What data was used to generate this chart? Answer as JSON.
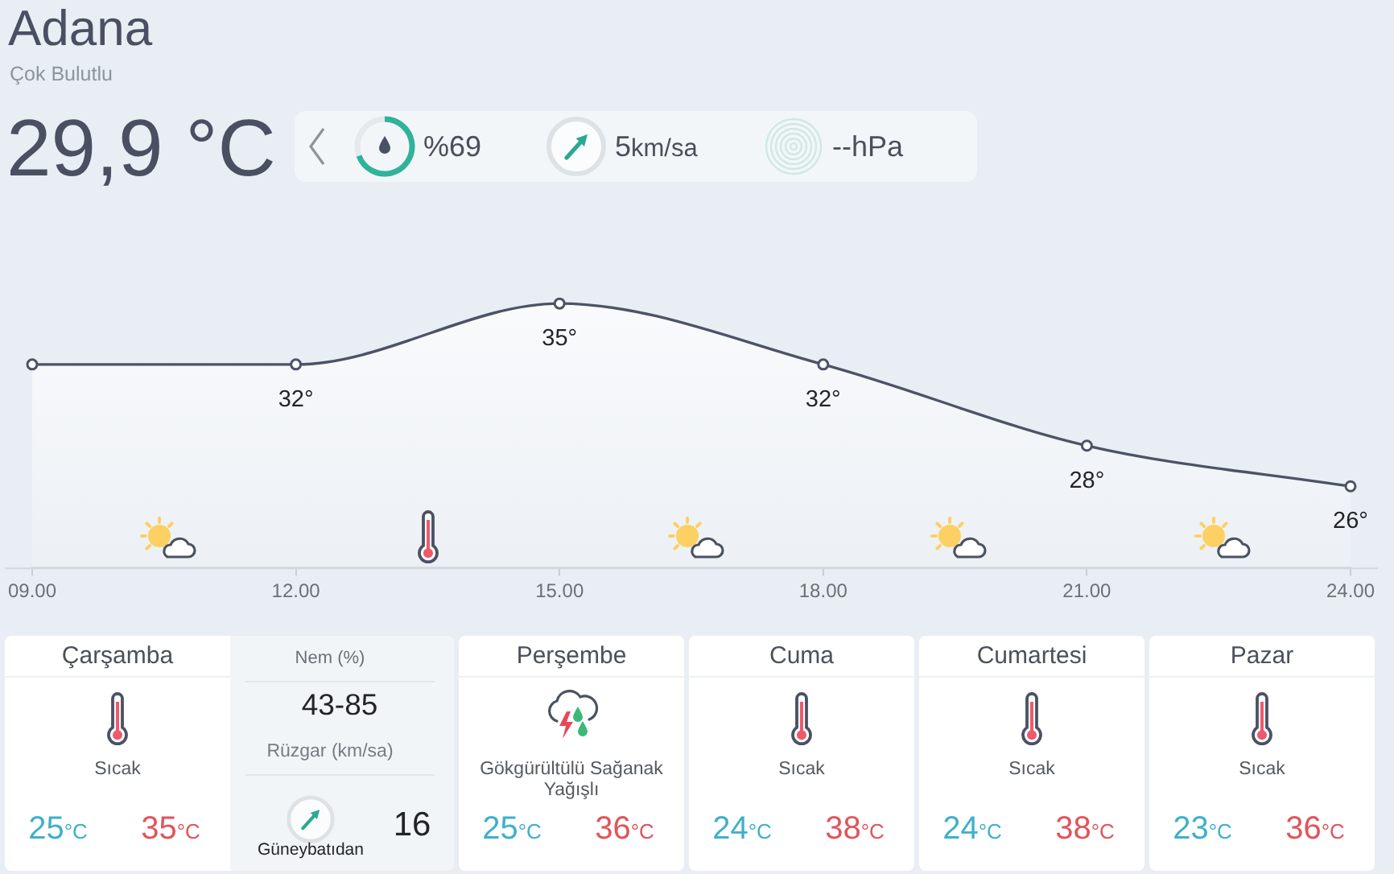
{
  "chart_data": [
    {
      "type": "other",
      "title": "Adana",
      "subtitle": "Çok Bulutlu",
      "annotations": [
        "29,9 °C",
        "%69",
        "5km/sa",
        "--hPa"
      ]
    },
    {
      "type": "area",
      "categories": [
        "09.00",
        "12.00",
        "15.00",
        "18.00",
        "21.00",
        "24.00"
      ],
      "values": [
        32,
        32,
        35,
        32,
        28,
        26
      ],
      "color": "#4c5365",
      "value_labels": [
        null,
        "32°",
        "35°",
        "32°",
        "28°",
        "26°"
      ],
      "tick_labels": "x",
      "marker": "circle"
    },
    {
      "type": "other",
      "title": "Çarşamba",
      "annotations": [
        "Sıcak",
        "25°C",
        "35°C"
      ]
    },
    {
      "type": "other",
      "annotations": [
        "Nem (%)",
        "43-85",
        "Rüzgar (km/sa)",
        "Güneybatıdan",
        "16"
      ]
    },
    {
      "type": "other",
      "title": "Perşembe",
      "annotations": [
        "Gökgürültülü Sağanak Yağışlı",
        "25°C",
        "36°C"
      ]
    },
    {
      "type": "other",
      "title": "Cuma",
      "annotations": [
        "Sıcak",
        "24°C",
        "38°C"
      ]
    },
    {
      "type": "other",
      "title": "Cumartesi",
      "annotations": [
        "Sıcak",
        "24°C",
        "38°C"
      ]
    },
    {
      "type": "other",
      "title": "Pazar",
      "annotations": [
        "Sıcak",
        "23°C",
        "36°C"
      ]
    }
  ]
}
